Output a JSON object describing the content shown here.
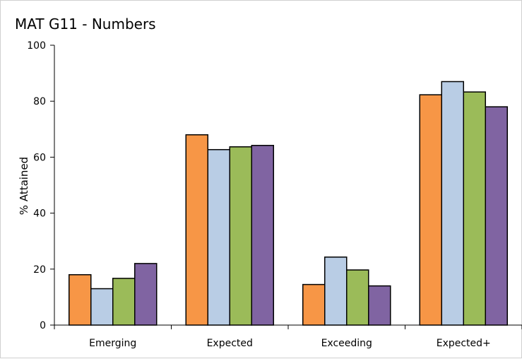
{
  "chart_data": {
    "type": "bar",
    "title": "MAT G11 - Numbers",
    "ylabel": "% Attained",
    "xlabel": "",
    "ylim": [
      0,
      100
    ],
    "yticks": [
      0,
      20,
      40,
      60,
      80,
      100
    ],
    "grid": false,
    "legend": "none",
    "categories": [
      "Emerging",
      "Expected",
      "Exceeding",
      "Expected+"
    ],
    "series": [
      {
        "color": "#F79646",
        "values": [
          18,
          68,
          14.5,
          82.3
        ]
      },
      {
        "color": "#B9CDE5",
        "values": [
          13,
          62.7,
          24.3,
          87
        ]
      },
      {
        "color": "#9BBB59",
        "values": [
          16.7,
          63.7,
          19.7,
          83.3
        ]
      },
      {
        "color": "#8064A2",
        "values": [
          22,
          64.2,
          14,
          78
        ]
      }
    ]
  }
}
